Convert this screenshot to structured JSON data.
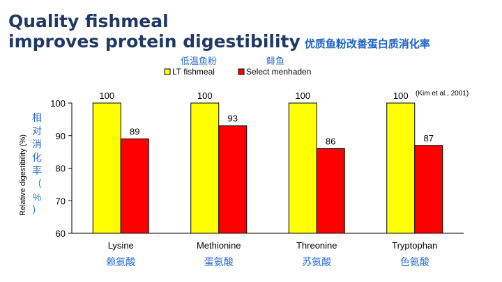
{
  "slide": {
    "title_line1": "Quality fishmeal",
    "title_line2": "improves protein digestibility",
    "title_zh": "优质鱼粉改善蛋白质消化率",
    "citation": "(Kim et al., 2001)"
  },
  "colors": {
    "title": "#1f3864",
    "accent_zh": "#2e6fd1",
    "lt": "#ffff00",
    "menhaden": "#ff0000"
  },
  "chart_data": {
    "type": "bar",
    "categories": [
      "Lysine",
      "Methionine",
      "Threonine",
      "Tryptophan"
    ],
    "categories_zh": [
      "赖氨酸",
      "蛋氨酸",
      "苏氨酸",
      "色氨酸"
    ],
    "series": [
      {
        "name": "LT fishmeal",
        "name_zh": "低温鱼粉",
        "color": "#ffff00",
        "values": [
          100,
          100,
          100,
          100
        ]
      },
      {
        "name": "Select menhaden",
        "name_zh": "鲱鱼",
        "color": "#ff0000",
        "values": [
          89,
          93,
          86,
          87
        ]
      }
    ],
    "ylabel": "Relative digestibility (%)",
    "ylabel_zh": "相对消化率（%）",
    "ylim": [
      60,
      100
    ],
    "yticks": [
      60,
      70,
      80,
      90,
      100
    ],
    "grid": false,
    "legend": "top"
  }
}
